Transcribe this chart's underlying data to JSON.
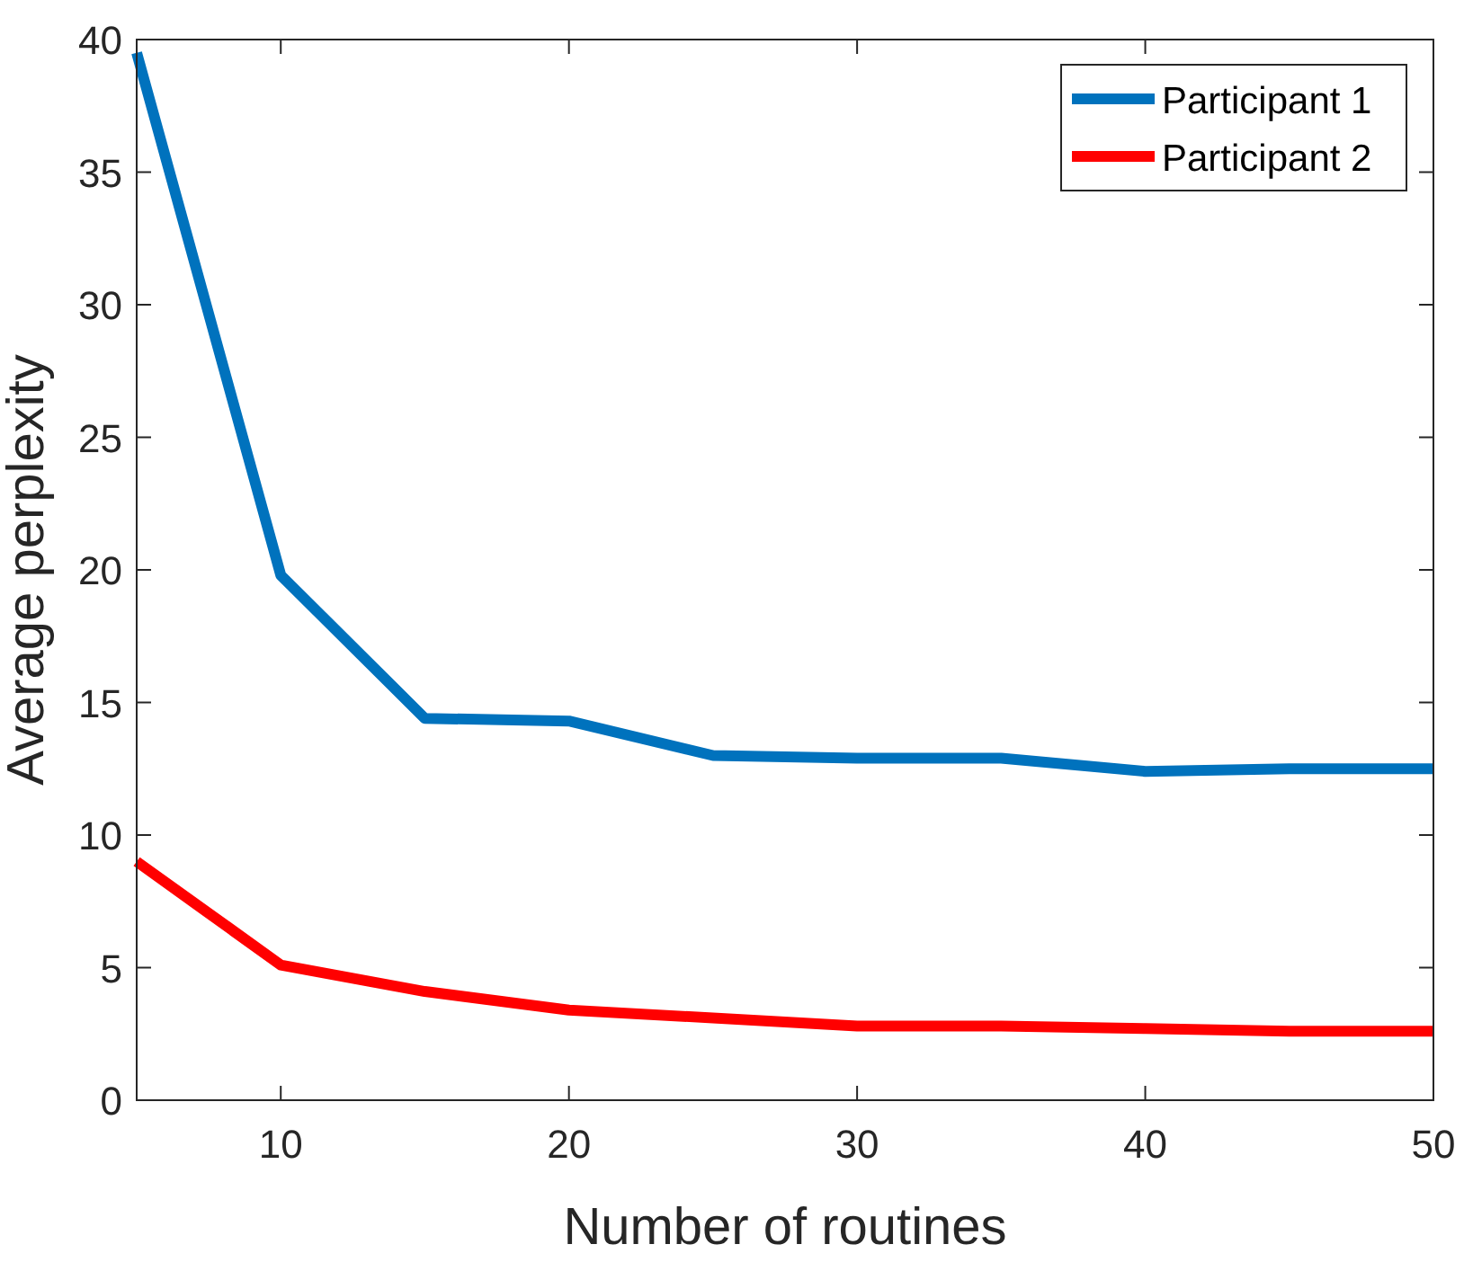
{
  "chart_data": {
    "type": "line",
    "xlabel": "Number of routines",
    "ylabel": "Average perplexity",
    "x": [
      5,
      10,
      15,
      20,
      25,
      30,
      35,
      40,
      45,
      50
    ],
    "series": [
      {
        "name": "Participant 1",
        "color": "#0072bd",
        "values": [
          39.5,
          19.8,
          14.4,
          14.3,
          13.0,
          12.9,
          12.9,
          12.4,
          12.5,
          12.5
        ]
      },
      {
        "name": "Participant 2",
        "color": "#ff0000",
        "values": [
          9.0,
          5.1,
          4.1,
          3.4,
          3.1,
          2.8,
          2.8,
          2.7,
          2.6,
          2.6
        ]
      }
    ],
    "xlim": [
      5,
      50
    ],
    "xticks": [
      10,
      20,
      30,
      40,
      50
    ],
    "ylim": [
      0,
      40
    ],
    "yticks": [
      0,
      5,
      10,
      15,
      20,
      25,
      30,
      35,
      40
    ],
    "grid": false,
    "legend": "top right",
    "marker": "none",
    "line_style": "solid"
  }
}
